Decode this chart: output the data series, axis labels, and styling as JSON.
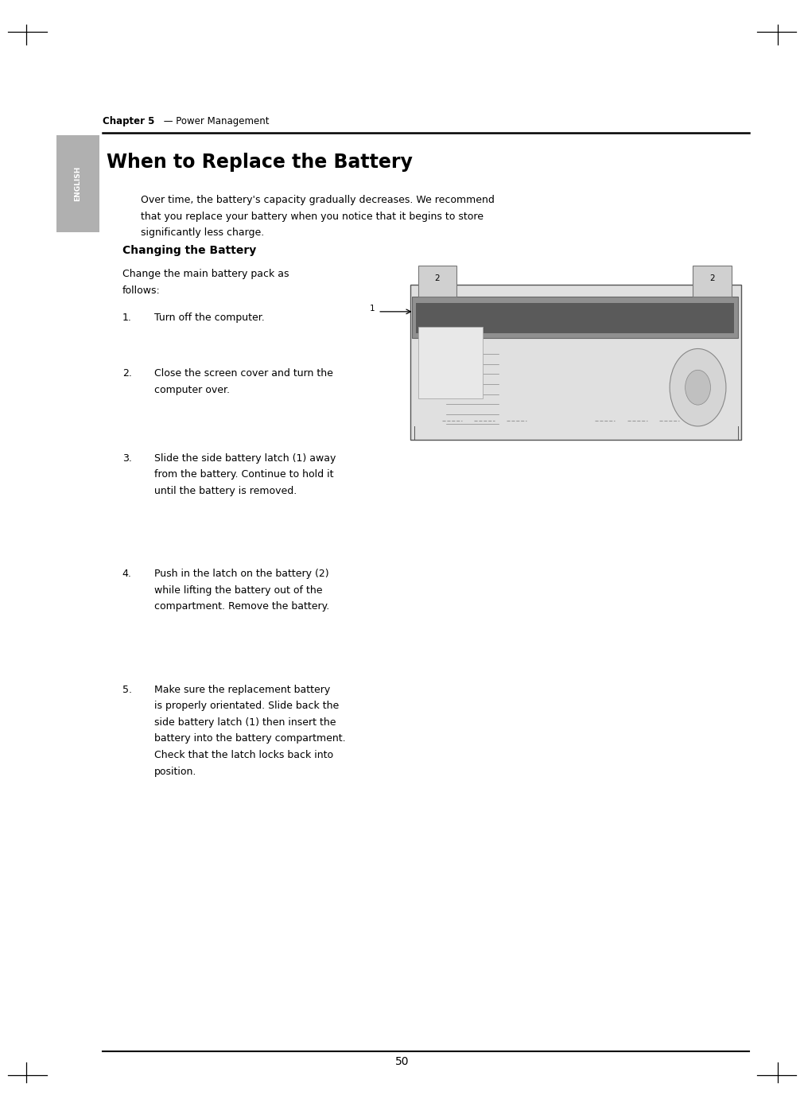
{
  "page_width": 10.11,
  "page_height": 13.92,
  "bg_color": "#ffffff",
  "chapter_bold": "Chapter 5",
  "chapter_rest": " — Power Management",
  "section_title": "When to Replace the Battery",
  "sidebar_label": "ENGLISH",
  "intro_lines": [
    "Over time, the battery's capacity gradually decreases. We recommend",
    "that you replace your battery when you notice that it begins to store",
    "significantly less charge."
  ],
  "subsection_title": "Changing the Battery",
  "intro_para_lines": [
    "Change the main battery pack as",
    "follows:"
  ],
  "step_texts": [
    [
      "Turn off the computer."
    ],
    [
      "Close the screen cover and turn the",
      "computer over."
    ],
    [
      "Slide the side battery latch (1) away",
      "from the battery. Continue to hold it",
      "until the battery is removed."
    ],
    [
      "Push in the latch on the battery (2)",
      "while lifting the battery out of the",
      "compartment. Remove the battery."
    ],
    [
      "Make sure the replacement battery",
      "is properly orientated. Slide back the",
      "side battery latch (1) then insert the",
      "battery into the battery compartment.",
      "Check that the latch locks back into",
      "position."
    ]
  ],
  "page_number": "50",
  "sidebar_color": "#b0b0b0",
  "sidebar_text_color": "#ffffff",
  "text_color": "#000000",
  "header_line_color": "#000000",
  "bottom_line_color": "#000000"
}
